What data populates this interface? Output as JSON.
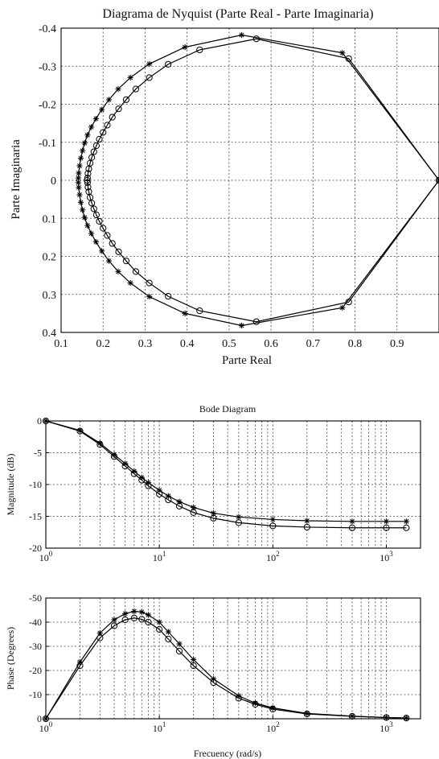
{
  "chart_data": [
    {
      "type": "line",
      "title": "Diagrama de Nyquist (Parte Real - Parte Imaginaria)",
      "xlabel": "Parte Real",
      "ylabel": "Parte Imaginaria",
      "xlim": [
        0.1,
        1.0
      ],
      "ylim": [
        0.4,
        -0.4
      ],
      "y_axis_reversed": true,
      "grid": true,
      "xticks": [
        "0.1",
        "0.2",
        "0.3",
        "0.4",
        "0.5",
        "0.6",
        "0.7",
        "0.8",
        "0.9"
      ],
      "yticks": [
        "-0.4",
        "-0.3",
        "-0.2",
        "-0.1",
        "0",
        "0.1",
        "0.2",
        "0.3",
        "0.4"
      ],
      "series": [
        {
          "marker": "circle",
          "x": [
            1.0,
            0.785,
            0.565,
            0.43,
            0.355,
            0.31,
            0.278,
            0.255,
            0.237,
            0.222,
            0.21,
            0.2,
            0.191,
            0.184,
            0.178,
            0.173,
            0.169,
            0.166,
            0.164,
            0.163,
            0.162,
            0.163,
            0.164,
            0.166,
            0.169,
            0.173,
            0.178,
            0.184,
            0.191,
            0.2,
            0.21,
            0.222,
            0.237,
            0.255,
            0.278,
            0.31,
            0.355,
            0.43,
            0.565,
            0.785,
            1.0
          ],
          "y": [
            0.0,
            -0.32,
            -0.372,
            -0.343,
            -0.305,
            -0.27,
            -0.24,
            -0.212,
            -0.188,
            -0.166,
            -0.145,
            -0.126,
            -0.108,
            -0.091,
            -0.075,
            -0.06,
            -0.045,
            -0.03,
            -0.018,
            -0.006,
            0.0,
            0.006,
            0.018,
            0.03,
            0.045,
            0.06,
            0.075,
            0.091,
            0.108,
            0.126,
            0.145,
            0.166,
            0.188,
            0.212,
            0.24,
            0.27,
            0.305,
            0.343,
            0.372,
            0.32,
            0.0
          ]
        },
        {
          "marker": "star",
          "x": [
            1.0,
            0.77,
            0.53,
            0.395,
            0.31,
            0.265,
            0.236,
            0.214,
            0.197,
            0.183,
            0.172,
            0.163,
            0.156,
            0.151,
            0.147,
            0.144,
            0.142,
            0.141,
            0.141,
            0.142,
            0.144,
            0.147,
            0.151,
            0.156,
            0.163,
            0.172,
            0.183,
            0.197,
            0.214,
            0.236,
            0.265,
            0.31,
            0.395,
            0.53,
            0.77,
            1.0
          ],
          "y": [
            0.0,
            -0.335,
            -0.382,
            -0.35,
            -0.306,
            -0.27,
            -0.24,
            -0.212,
            -0.186,
            -0.162,
            -0.14,
            -0.119,
            -0.098,
            -0.078,
            -0.058,
            -0.038,
            -0.019,
            -0.006,
            0.006,
            0.019,
            0.038,
            0.058,
            0.078,
            0.098,
            0.119,
            0.14,
            0.162,
            0.186,
            0.212,
            0.24,
            0.27,
            0.306,
            0.35,
            0.382,
            0.335,
            0.0
          ]
        }
      ]
    },
    {
      "type": "line",
      "title": "Bode Diagram",
      "xlabel": "",
      "ylabel": "Magnitude (dB)",
      "xscale": "log",
      "xlim": [
        1,
        2000
      ],
      "ylim": [
        -20,
        0
      ],
      "grid": true,
      "xticks": [
        {
          "base": "10",
          "exp": "0"
        },
        {
          "base": "10",
          "exp": "1"
        },
        {
          "base": "10",
          "exp": "2"
        },
        {
          "base": "10",
          "exp": "3"
        }
      ],
      "yticks": [
        "0",
        "-5",
        "-10",
        "-15",
        "-20"
      ],
      "series": [
        {
          "marker": "circle",
          "x": [
            1,
            2,
            3,
            4,
            5,
            6,
            7,
            8,
            10,
            12,
            15,
            20,
            30,
            50,
            100,
            200,
            500,
            1000,
            1500
          ],
          "y": [
            0,
            -1.6,
            -3.7,
            -5.6,
            -7.1,
            -8.3,
            -9.3,
            -10.2,
            -11.5,
            -12.4,
            -13.4,
            -14.4,
            -15.3,
            -16.0,
            -16.5,
            -16.7,
            -16.8,
            -16.8,
            -16.8
          ]
        },
        {
          "marker": "star",
          "x": [
            1,
            2,
            3,
            4,
            5,
            6,
            7,
            8,
            10,
            12,
            15,
            20,
            30,
            50,
            100,
            200,
            500,
            1000,
            1500
          ],
          "y": [
            0,
            -1.5,
            -3.5,
            -5.3,
            -6.7,
            -7.9,
            -8.9,
            -9.7,
            -10.9,
            -11.8,
            -12.7,
            -13.6,
            -14.5,
            -15.1,
            -15.5,
            -15.7,
            -15.8,
            -15.8,
            -15.8
          ]
        }
      ]
    },
    {
      "type": "line",
      "title": "",
      "xlabel": "Frecuency (rad/s)",
      "ylabel": "Phase (Degrees)",
      "xscale": "log",
      "xlim": [
        1,
        2000
      ],
      "ylim": [
        0,
        -50
      ],
      "y_axis_reversed": true,
      "grid": true,
      "xticks": [
        {
          "base": "10",
          "exp": "0"
        },
        {
          "base": "10",
          "exp": "1"
        },
        {
          "base": "10",
          "exp": "2"
        },
        {
          "base": "10",
          "exp": "3"
        }
      ],
      "yticks": [
        "-50",
        "-40",
        "-30",
        "-20",
        "-10",
        "0"
      ],
      "series": [
        {
          "marker": "circle",
          "x": [
            1,
            2,
            3,
            4,
            5,
            6,
            7,
            8,
            10,
            12,
            15,
            20,
            30,
            50,
            70,
            100,
            200,
            500,
            1000,
            1500
          ],
          "y": [
            0,
            -22,
            -33.5,
            -38.5,
            -41,
            -41.7,
            -41.2,
            -40,
            -37,
            -33,
            -28,
            -22,
            -15,
            -8.5,
            -6,
            -4,
            -2,
            -1,
            -0.5,
            -0.3
          ]
        },
        {
          "marker": "star",
          "x": [
            1,
            2,
            3,
            4,
            5,
            6,
            7,
            8,
            10,
            12,
            15,
            20,
            30,
            50,
            70,
            100,
            200,
            500,
            1000,
            1500
          ],
          "y": [
            0,
            -23.5,
            -35.5,
            -41,
            -43.5,
            -44.5,
            -44.2,
            -43,
            -40,
            -36,
            -31,
            -24.5,
            -16.5,
            -9.5,
            -6.5,
            -4.5,
            -2.2,
            -1.1,
            -0.5,
            -0.3
          ]
        }
      ]
    }
  ]
}
